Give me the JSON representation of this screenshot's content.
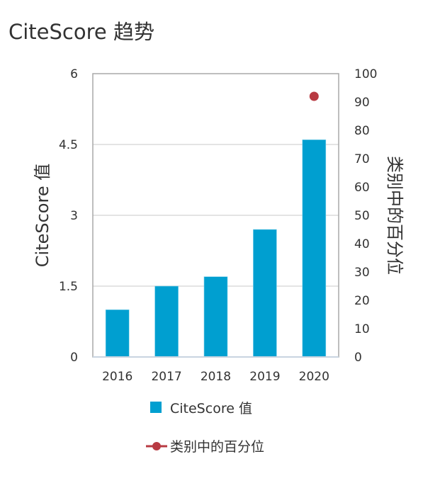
{
  "title": "CiteScore 趋势",
  "chart_data": {
    "type": "bar",
    "categories": [
      "2016",
      "2017",
      "2018",
      "2019",
      "2020"
    ],
    "series": [
      {
        "name": "CiteScore 值",
        "kind": "bar",
        "axis": "left",
        "color": "#009fd0",
        "values": [
          1.0,
          1.5,
          1.7,
          2.7,
          4.6
        ]
      },
      {
        "name": "类别中的百分位",
        "kind": "point",
        "axis": "right",
        "color": "#b83a42",
        "values": [
          null,
          null,
          null,
          null,
          92
        ]
      }
    ],
    "ylabel": "CiteScore 值",
    "ylim": [
      0,
      6
    ],
    "yticks": [
      "0",
      "1.5",
      "3",
      "4.5",
      "6"
    ],
    "y2label": "类别中的百分位",
    "y2lim": [
      0,
      100
    ],
    "y2ticks": [
      "0",
      "10",
      "20",
      "30",
      "40",
      "50",
      "60",
      "70",
      "80",
      "90",
      "100"
    ],
    "grid": true,
    "legend_placement": "bottom"
  }
}
